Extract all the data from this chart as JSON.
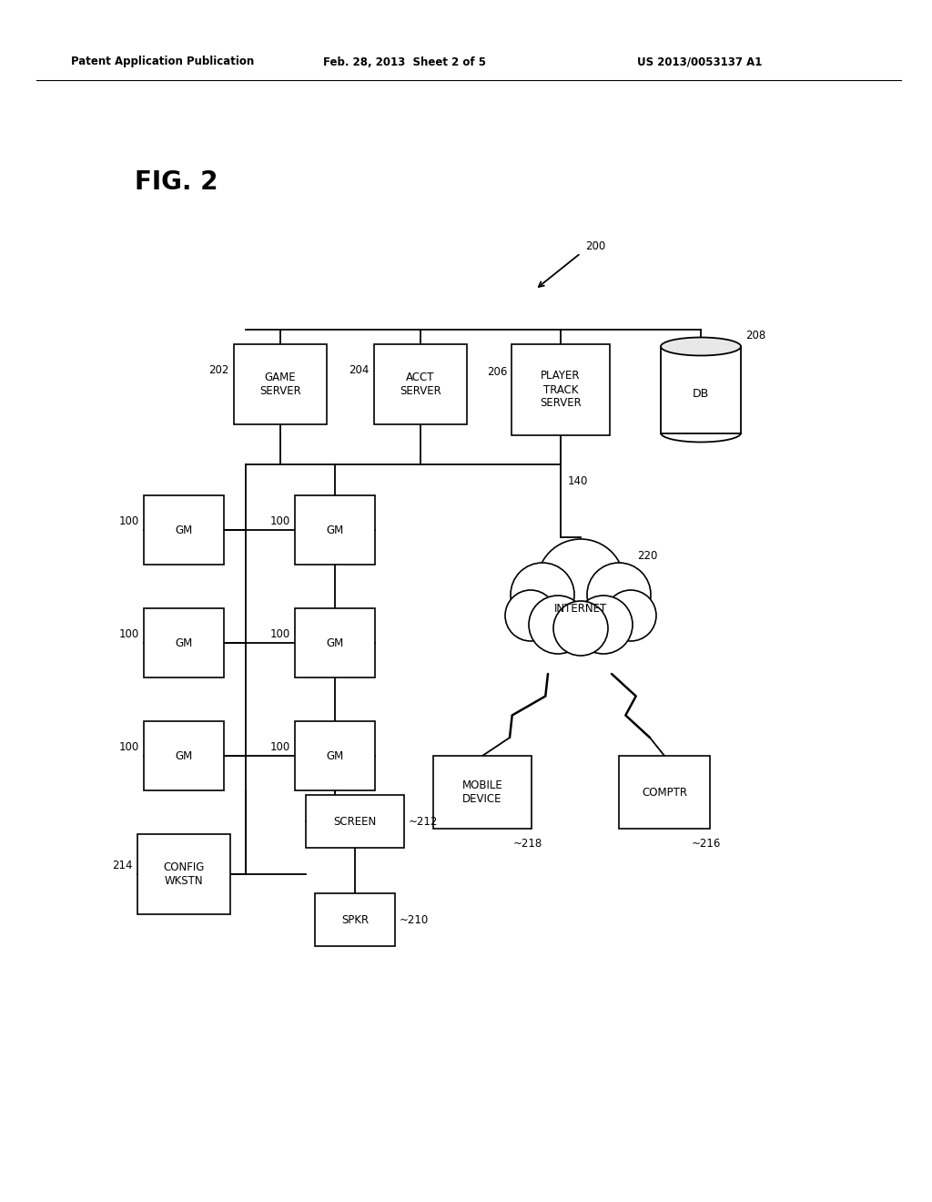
{
  "title_header_left": "Patent Application Publication",
  "title_header_mid": "Feb. 28, 2013  Sheet 2 of 5",
  "title_header_right": "US 2013/0053137 A1",
  "fig_label": "FIG. 2",
  "ref_200": "200",
  "ref_202": "202",
  "ref_204": "204",
  "ref_206": "206",
  "ref_208": "208",
  "ref_140": "140",
  "ref_220": "220",
  "ref_100": "100",
  "ref_212": "212",
  "ref_210": "210",
  "ref_214": "214",
  "ref_216": "216",
  "ref_218": "218",
  "background": "#ffffff",
  "line_color": "#000000",
  "text_color": "#000000",
  "box_facecolor": "#ffffff",
  "box_edgecolor": "#000000"
}
